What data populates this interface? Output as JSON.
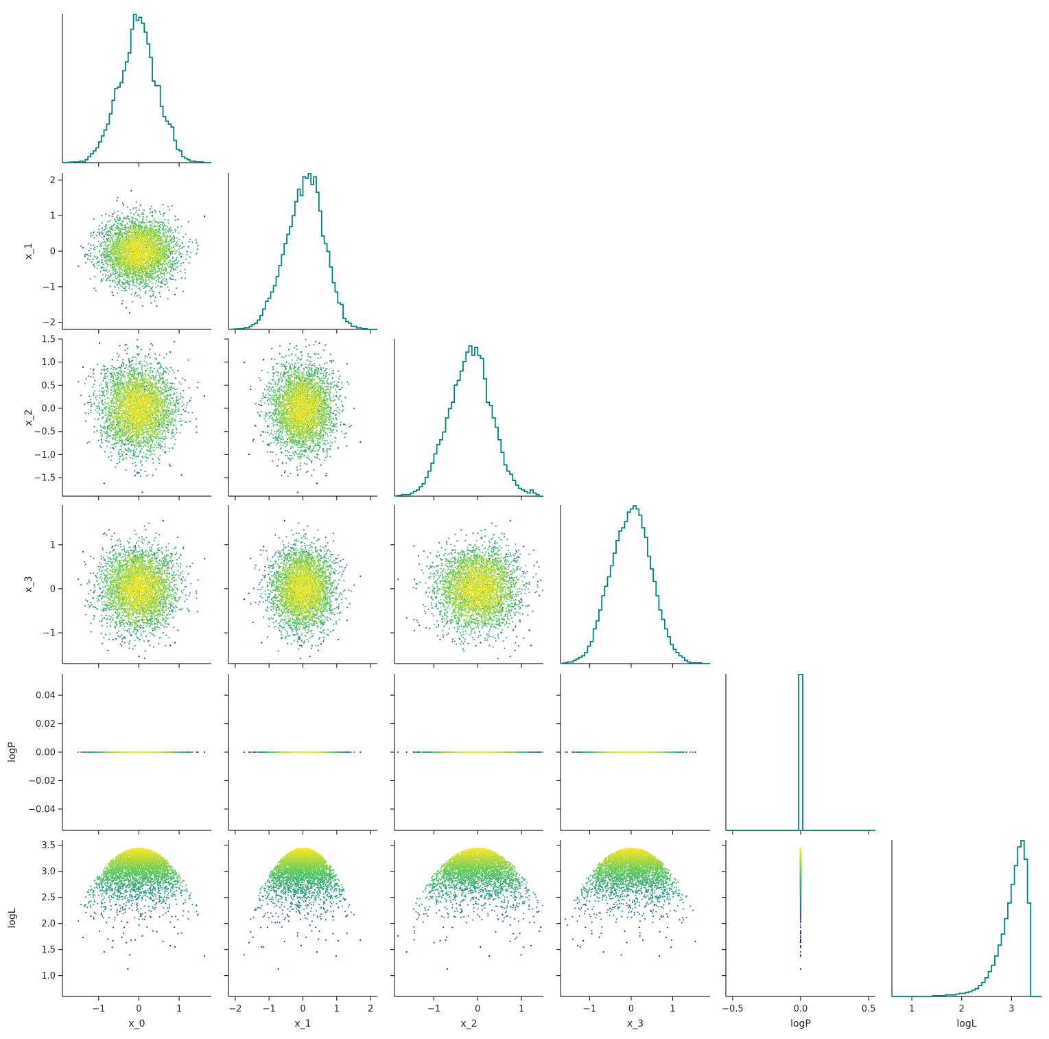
{
  "chart_data": {
    "type": "scatter",
    "kind": "corner-plot",
    "title": "",
    "variables": [
      "x_0",
      "x_1",
      "x_2",
      "x_3",
      "logP",
      "logL"
    ],
    "hist_color": "#00807f",
    "colormap": "viridis",
    "colormap_stops": [
      "#440154",
      "#3b528b",
      "#21918c",
      "#5ec962",
      "#fde725"
    ],
    "color_variable": "logL",
    "grid": false,
    "legend": "none",
    "axes": {
      "x_0": {
        "lim": [
          -1.9,
          1.8
        ],
        "ticks": [
          -1,
          0,
          1
        ],
        "tick_labels": [
          "−1",
          "0",
          "1"
        ]
      },
      "x_1": {
        "lim": [
          -2.2,
          2.2
        ],
        "ticks": [
          -2,
          -1,
          0,
          1,
          2
        ],
        "tick_labels": [
          "−2",
          "−1",
          "0",
          "1",
          "2"
        ]
      },
      "x_2": {
        "lim": [
          -1.9,
          1.5
        ],
        "ticks": [
          -1,
          0,
          1
        ],
        "tick_labels": [
          "−1",
          "0",
          "1"
        ]
      },
      "x_3": {
        "lim": [
          -1.7,
          1.9
        ],
        "ticks": [
          -1,
          0,
          1
        ],
        "tick_labels": [
          "−1",
          "0",
          "1"
        ]
      },
      "logP": {
        "lim": [
          -0.055,
          0.055
        ],
        "ticks": [
          -0.5,
          0.0,
          0.5
        ],
        "tick_labels": [
          "−0.5",
          "0.0",
          "0.5"
        ],
        "xlim": [
          -0.55,
          0.55
        ],
        "yticks": [
          -0.04,
          -0.02,
          0.0,
          0.02,
          0.04
        ],
        "ytick_labels": [
          "−0.04",
          "−0.02",
          "0.00",
          "0.02",
          "0.04"
        ]
      },
      "logL": {
        "lim": [
          0.6,
          3.6
        ],
        "ticks": [
          1,
          2,
          3
        ],
        "tick_labels": [
          "1",
          "2",
          "3"
        ],
        "yticks": [
          1.0,
          1.5,
          2.0,
          2.5,
          3.0,
          3.5
        ],
        "ytick_labels": [
          "1.0",
          "1.5",
          "2.0",
          "2.5",
          "3.0",
          "3.5"
        ]
      }
    },
    "y_tick_labels": {
      "x_1": [
        "−2",
        "−1",
        "0",
        "1",
        "2"
      ],
      "x_2": [
        "−1.5",
        "−1.0",
        "−0.5",
        "0.0",
        "0.5",
        "1.0",
        "1.5"
      ],
      "x_3": [
        "−1",
        "0",
        "1"
      ]
    },
    "marginals": {
      "x_0": {
        "edges_range": [
          -1.6,
          1.6
        ],
        "density": [
          0.005,
          0.005,
          0.01,
          0.005,
          0.02,
          0.04,
          0.06,
          0.08,
          0.1,
          0.14,
          0.18,
          0.22,
          0.26,
          0.33,
          0.42,
          0.5,
          0.51,
          0.54,
          0.62,
          0.68,
          0.74,
          0.9,
          1.0,
          0.96,
          0.98,
          0.94,
          0.88,
          0.8,
          0.71,
          0.55,
          0.52,
          0.52,
          0.38,
          0.31,
          0.28,
          0.26,
          0.24,
          0.15,
          0.09,
          0.08,
          0.04,
          0.03,
          0.02,
          0.01,
          0.01,
          0.005,
          0.005,
          0.005
        ]
      },
      "x_1": {
        "edges_range": [
          -1.9,
          1.9
        ],
        "density": [
          0.005,
          0.005,
          0.01,
          0.01,
          0.02,
          0.03,
          0.04,
          0.06,
          0.09,
          0.13,
          0.18,
          0.2,
          0.24,
          0.28,
          0.34,
          0.41,
          0.48,
          0.55,
          0.61,
          0.66,
          0.73,
          0.82,
          0.9,
          0.86,
          0.98,
          0.97,
          1.0,
          0.93,
          0.98,
          0.88,
          0.76,
          0.6,
          0.55,
          0.5,
          0.4,
          0.3,
          0.24,
          0.17,
          0.16,
          0.07,
          0.05,
          0.04,
          0.02,
          0.02,
          0.01,
          0.01,
          0.005,
          0.005
        ]
      },
      "x_2": {
        "edges_range": [
          -1.8,
          1.4
        ],
        "density": [
          0.005,
          0.01,
          0.01,
          0.01,
          0.02,
          0.03,
          0.04,
          0.06,
          0.08,
          0.12,
          0.16,
          0.21,
          0.27,
          0.33,
          0.36,
          0.41,
          0.5,
          0.56,
          0.6,
          0.71,
          0.74,
          0.8,
          0.86,
          0.92,
          0.96,
          0.9,
          0.95,
          0.9,
          0.88,
          0.75,
          0.6,
          0.58,
          0.5,
          0.44,
          0.36,
          0.28,
          0.2,
          0.16,
          0.14,
          0.1,
          0.07,
          0.05,
          0.04,
          0.03,
          0.02,
          0.04,
          0.02,
          0.01
        ]
      },
      "x_3": {
        "edges_range": [
          -1.6,
          1.7
        ],
        "density": [
          0.005,
          0.01,
          0.01,
          0.02,
          0.03,
          0.04,
          0.05,
          0.07,
          0.11,
          0.14,
          0.22,
          0.27,
          0.34,
          0.43,
          0.49,
          0.55,
          0.62,
          0.7,
          0.78,
          0.84,
          0.86,
          0.9,
          0.96,
          0.98,
          1.0,
          0.98,
          0.94,
          0.86,
          0.8,
          0.68,
          0.6,
          0.52,
          0.43,
          0.34,
          0.28,
          0.22,
          0.17,
          0.12,
          0.09,
          0.07,
          0.05,
          0.04,
          0.02,
          0.01,
          0.005,
          0.005,
          0.005,
          0.005
        ]
      },
      "logP": {
        "bins": [
          [
            -0.015,
            0.015
          ]
        ],
        "density": [
          1.0
        ]
      },
      "logL": {
        "edges_range": [
          0.7,
          3.45
        ],
        "density": [
          0.0,
          0.0,
          0.0,
          0.0,
          0.0,
          0.0,
          0.0,
          0.0,
          0.0,
          0.0,
          0.0,
          0.005,
          0.005,
          0.005,
          0.005,
          0.01,
          0.01,
          0.01,
          0.015,
          0.02,
          0.02,
          0.025,
          0.03,
          0.04,
          0.05,
          0.07,
          0.09,
          0.12,
          0.16,
          0.2,
          0.26,
          0.33,
          0.4,
          0.5,
          0.6,
          0.72,
          0.84,
          0.96,
          1.0,
          0.88,
          0.6,
          0.0
        ]
      }
    },
    "samples": {
      "count": 4000,
      "distribution": "independent normal, sd 0.45, mean 0 for x_0..x_3",
      "logP_value": 0.0,
      "logL_max": 3.45
    }
  }
}
